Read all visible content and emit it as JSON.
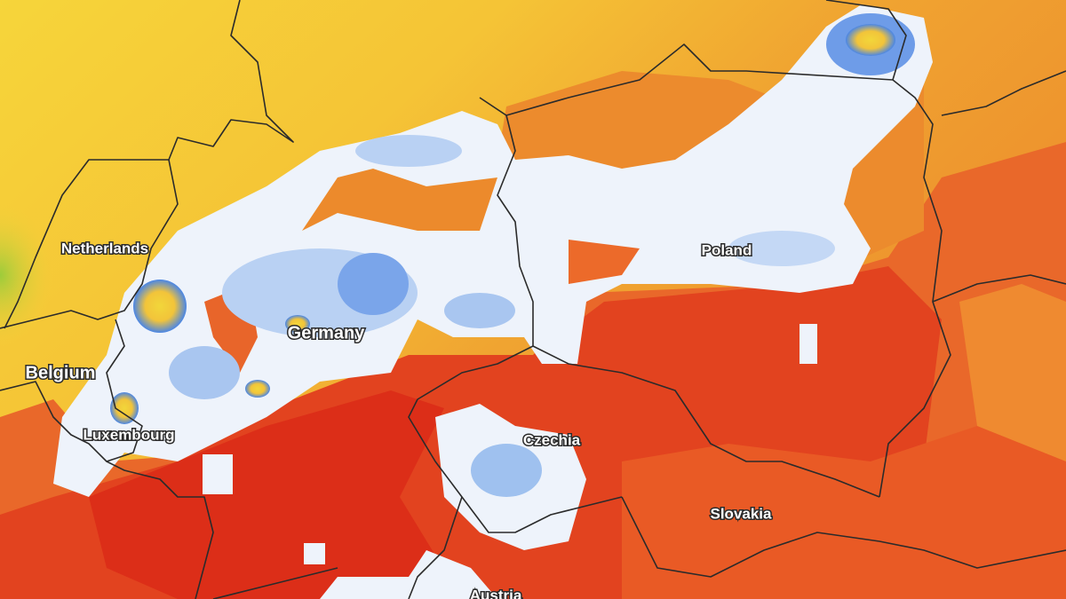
{
  "labels": {
    "netherlands": "Netherlands",
    "belgium": "Belgium",
    "luxembourg": "Luxembourg",
    "germany": "Germany",
    "czechia": "Czechia",
    "poland": "Poland",
    "slovakia": "Slovakia",
    "austria": "Austria"
  }
}
